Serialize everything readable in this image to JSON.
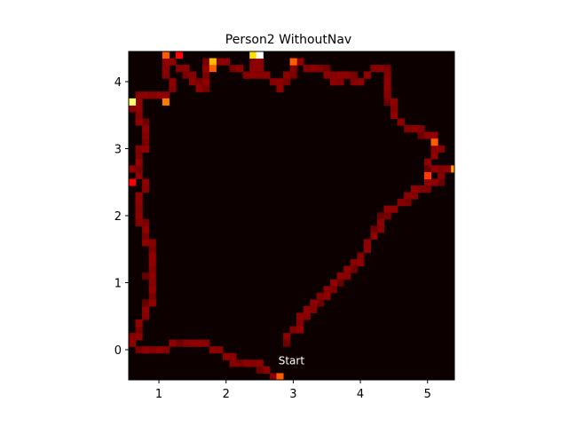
{
  "chart_data": {
    "type": "heatmap",
    "title": "Person2 WithoutNav",
    "xlabel": "",
    "ylabel": "",
    "xlim": [
      0.55,
      5.4
    ],
    "ylim": [
      -0.45,
      4.45
    ],
    "x_ticks": [
      1,
      2,
      3,
      4,
      5
    ],
    "y_ticks": [
      0,
      1,
      2,
      3,
      4
    ],
    "x_tick_labels": [
      "1",
      "2",
      "3",
      "4",
      "5"
    ],
    "y_tick_labels": [
      "0",
      "1",
      "2",
      "3",
      "4"
    ],
    "colormap": "hot",
    "background_color": "#0d0000",
    "cell_size": 0.1,
    "annotation": {
      "text": "Start",
      "x": 2.78,
      "y": -0.22
    },
    "path": [
      [
        2.78,
        -0.4
      ],
      [
        2.65,
        -0.35
      ],
      [
        2.5,
        -0.22
      ],
      [
        2.3,
        -0.18
      ],
      [
        2.1,
        -0.15
      ],
      [
        1.95,
        -0.05
      ],
      [
        1.75,
        0.05
      ],
      [
        1.5,
        0.1
      ],
      [
        1.25,
        0.1
      ],
      [
        1.1,
        0.03
      ],
      [
        0.9,
        0.0
      ],
      [
        0.7,
        0.0
      ],
      [
        0.62,
        0.05
      ],
      [
        0.65,
        0.2
      ],
      [
        0.72,
        0.35
      ],
      [
        0.78,
        0.5
      ],
      [
        0.82,
        0.62
      ],
      [
        0.88,
        0.75
      ],
      [
        0.9,
        0.85
      ],
      [
        0.9,
        1.0
      ],
      [
        0.85,
        1.15
      ],
      [
        0.88,
        1.3
      ],
      [
        0.9,
        1.45
      ],
      [
        0.85,
        1.6
      ],
      [
        0.8,
        1.75
      ],
      [
        0.75,
        1.9
      ],
      [
        0.72,
        2.05
      ],
      [
        0.7,
        2.2
      ],
      [
        0.72,
        2.3
      ],
      [
        0.78,
        2.4
      ],
      [
        0.85,
        2.45
      ],
      [
        0.75,
        2.55
      ],
      [
        0.65,
        2.65
      ],
      [
        0.68,
        2.8
      ],
      [
        0.75,
        2.95
      ],
      [
        0.78,
        3.1
      ],
      [
        0.78,
        3.25
      ],
      [
        0.75,
        3.4
      ],
      [
        0.68,
        3.55
      ],
      [
        0.62,
        3.65
      ],
      [
        0.7,
        3.75
      ],
      [
        0.85,
        3.8
      ],
      [
        1.0,
        3.78
      ],
      [
        1.12,
        3.8
      ],
      [
        1.2,
        3.9
      ],
      [
        1.15,
        4.05
      ],
      [
        1.1,
        4.2
      ],
      [
        1.05,
        4.32
      ],
      [
        1.2,
        4.3
      ],
      [
        1.32,
        4.22
      ],
      [
        1.45,
        4.12
      ],
      [
        1.55,
        4.0
      ],
      [
        1.62,
        3.92
      ],
      [
        1.72,
        4.0
      ],
      [
        1.75,
        4.15
      ],
      [
        1.75,
        4.28
      ],
      [
        1.9,
        4.25
      ],
      [
        2.05,
        4.25
      ],
      [
        2.2,
        4.2
      ],
      [
        2.3,
        4.12
      ],
      [
        2.35,
        4.05
      ],
      [
        2.4,
        4.2
      ],
      [
        2.45,
        4.3
      ],
      [
        2.5,
        4.22
      ],
      [
        2.55,
        4.12
      ],
      [
        2.65,
        4.05
      ],
      [
        2.75,
        3.95
      ],
      [
        2.85,
        3.92
      ],
      [
        2.92,
        4.05
      ],
      [
        3.0,
        4.2
      ],
      [
        3.05,
        4.3
      ],
      [
        3.15,
        4.25
      ],
      [
        3.3,
        4.2
      ],
      [
        3.45,
        4.15
      ],
      [
        3.55,
        4.05
      ],
      [
        3.62,
        4.02
      ],
      [
        3.72,
        4.08
      ],
      [
        3.85,
        4.12
      ],
      [
        3.95,
        4.0
      ],
      [
        4.05,
        4.05
      ],
      [
        4.15,
        4.15
      ],
      [
        4.3,
        4.22
      ],
      [
        4.35,
        4.2
      ],
      [
        4.38,
        4.08
      ],
      [
        4.4,
        3.95
      ],
      [
        4.42,
        3.82
      ],
      [
        4.45,
        3.68
      ],
      [
        4.52,
        3.5
      ],
      [
        4.6,
        3.4
      ],
      [
        4.72,
        3.32
      ],
      [
        4.85,
        3.28
      ],
      [
        4.98,
        3.22
      ],
      [
        5.08,
        3.18
      ],
      [
        5.12,
        3.05
      ],
      [
        5.15,
        2.95
      ],
      [
        5.05,
        2.85
      ],
      [
        4.98,
        2.75
      ],
      [
        5.1,
        2.72
      ],
      [
        5.22,
        2.72
      ],
      [
        5.32,
        2.72
      ],
      [
        5.22,
        2.6
      ],
      [
        5.12,
        2.5
      ],
      [
        5.0,
        2.45
      ],
      [
        4.88,
        2.38
      ],
      [
        4.75,
        2.3
      ],
      [
        4.62,
        2.2
      ],
      [
        4.5,
        2.12
      ],
      [
        4.38,
        2.05
      ],
      [
        4.3,
        1.95
      ],
      [
        4.25,
        1.82
      ],
      [
        4.2,
        1.7
      ],
      [
        4.12,
        1.58
      ],
      [
        4.05,
        1.48
      ],
      [
        3.98,
        1.38
      ],
      [
        3.9,
        1.28
      ],
      [
        3.8,
        1.18
      ],
      [
        3.7,
        1.08
      ],
      [
        3.6,
        0.98
      ],
      [
        3.5,
        0.88
      ],
      [
        3.4,
        0.78
      ],
      [
        3.3,
        0.68
      ],
      [
        3.22,
        0.58
      ],
      [
        3.15,
        0.48
      ],
      [
        3.08,
        0.38
      ],
      [
        3.0,
        0.28
      ],
      [
        2.92,
        0.2
      ],
      [
        2.88,
        0.12
      ]
    ],
    "hotspots": [
      {
        "x": 0.58,
        "y": 3.72,
        "level": 0.85
      },
      {
        "x": 1.08,
        "y": 3.72,
        "level": 0.55
      },
      {
        "x": 1.08,
        "y": 4.42,
        "level": 0.5
      },
      {
        "x": 1.78,
        "y": 4.32,
        "level": 0.65
      },
      {
        "x": 1.78,
        "y": 4.22,
        "level": 0.5
      },
      {
        "x": 2.38,
        "y": 4.42,
        "level": 0.7
      },
      {
        "x": 2.48,
        "y": 4.42,
        "level": 1.0
      },
      {
        "x": 2.98,
        "y": 4.32,
        "level": 0.5
      },
      {
        "x": 2.78,
        "y": -0.38,
        "level": 0.5
      },
      {
        "x": 4.98,
        "y": 2.62,
        "level": 0.45
      },
      {
        "x": 5.08,
        "y": 3.12,
        "level": 0.5
      },
      {
        "x": 5.38,
        "y": 2.72,
        "level": 0.6
      },
      {
        "x": 0.58,
        "y": 2.52,
        "level": 0.35
      },
      {
        "x": 1.28,
        "y": 4.42,
        "level": 0.35
      }
    ]
  }
}
